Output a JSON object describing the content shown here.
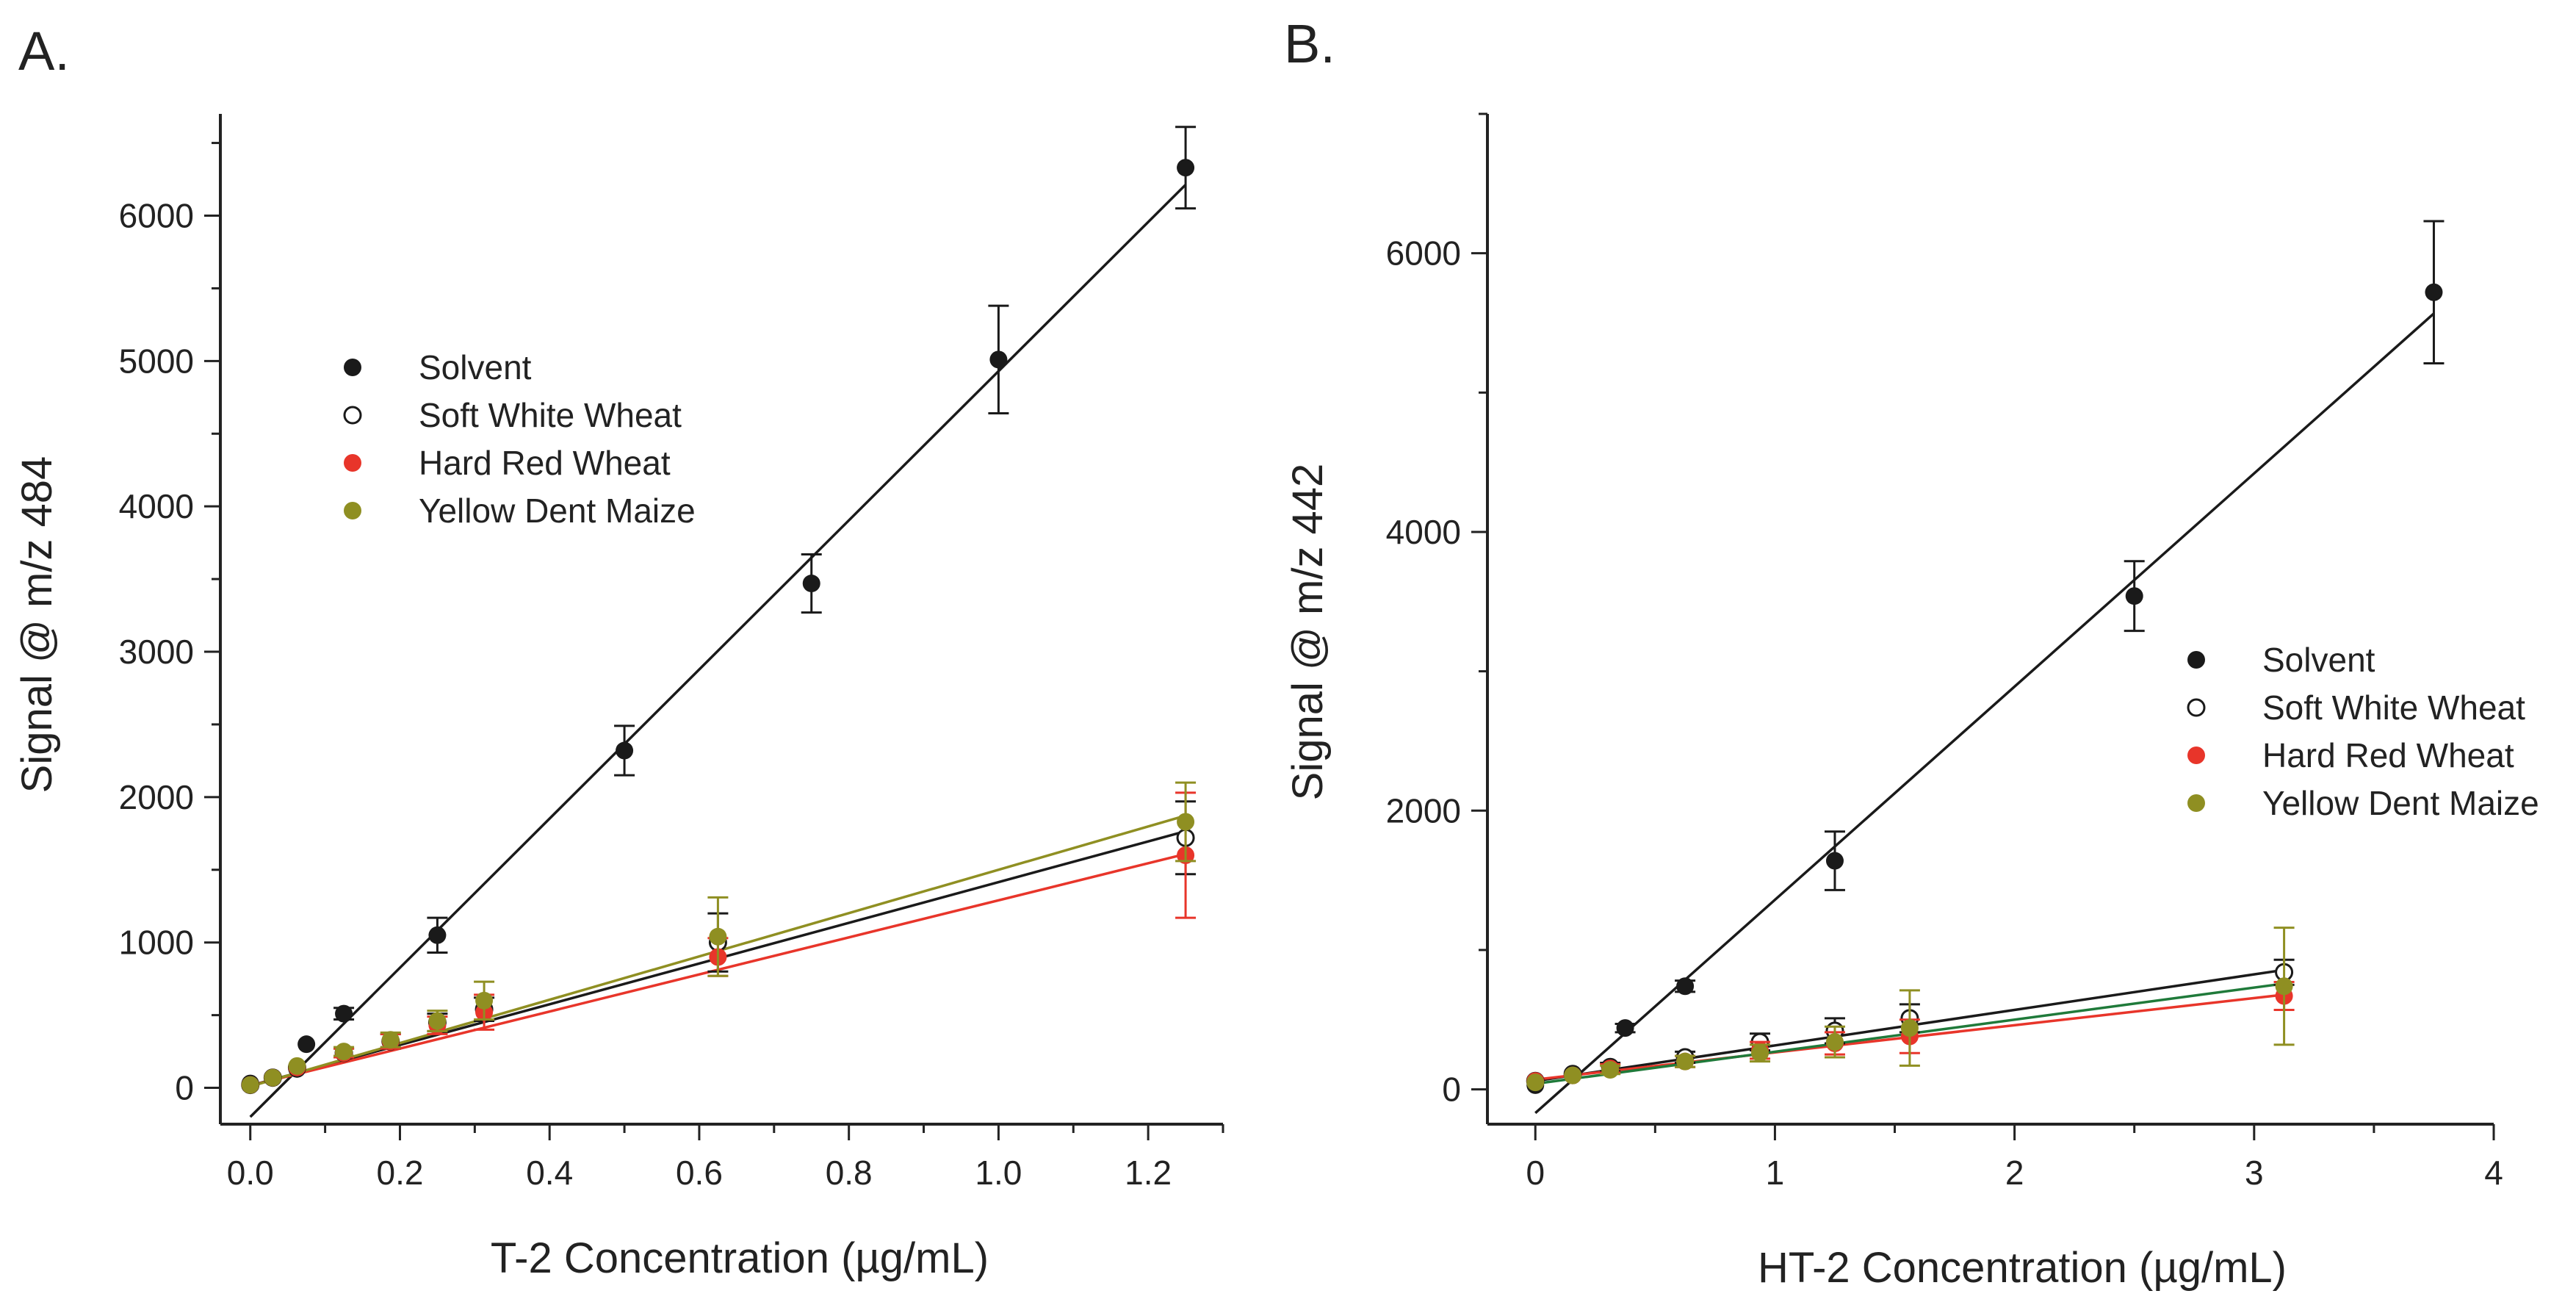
{
  "panels": [
    {
      "label": "A.",
      "xlabel": "T-2 Concentration (µg/mL)",
      "ylabel": "Signal @ m/z 484",
      "xlim": [
        -0.04,
        1.3
      ],
      "ylim": [
        -250,
        6700
      ],
      "xticks": [
        0.0,
        0.2,
        0.4,
        0.6,
        0.8,
        1.0,
        1.2
      ],
      "xtick_labels": [
        "0.0",
        "0.2",
        "0.4",
        "0.6",
        "0.8",
        "1.0",
        "1.2"
      ],
      "yticks": [
        0,
        1000,
        2000,
        3000,
        4000,
        5000,
        6000
      ],
      "ytick_labels": [
        "0",
        "1000",
        "2000",
        "3000",
        "4000",
        "5000",
        "6000"
      ],
      "legend_position": "upper-left",
      "legend": [
        "Solvent",
        "Soft White Wheat",
        "Hard Red Wheat",
        "Yellow Dent Maize"
      ]
    },
    {
      "label": "B.",
      "xlabel": "HT-2 Concentration (µg/mL)",
      "ylabel": "Signal @ m/z 442",
      "xlim": [
        -0.2,
        4.0
      ],
      "ylim": [
        -250,
        7000
      ],
      "xticks": [
        0,
        1,
        2,
        3,
        4
      ],
      "xtick_labels": [
        "0",
        "1",
        "2",
        "3",
        "4"
      ],
      "yticks": [
        0,
        2000,
        4000,
        6000
      ],
      "ytick_labels": [
        "0",
        "2000",
        "4000",
        "6000"
      ],
      "legend_position": "center-right",
      "legend": [
        "Solvent",
        "Soft White Wheat",
        "Hard Red Wheat",
        "Yellow Dent Maize"
      ]
    }
  ],
  "chart_data": [
    {
      "type": "scatter",
      "title": "",
      "xlabel": "T-2 Concentration (µg/mL)",
      "ylabel": "Signal @ m/z 484",
      "xlim": [
        -0.04,
        1.3
      ],
      "ylim": [
        -250,
        6700
      ],
      "grid": false,
      "legend": "upper-left",
      "series": [
        {
          "name": "Solvent",
          "marker": "filled",
          "color": "#1a1a1a",
          "line_color": "#1a1a1a",
          "fit": [
            -200,
            5130
          ],
          "points": [
            {
              "x": 0.0,
              "y": 30,
              "err": 0
            },
            {
              "x": 0.0625,
              "y": 130,
              "err": 0
            },
            {
              "x": 0.075,
              "y": 300,
              "err": 0
            },
            {
              "x": 0.125,
              "y": 510,
              "err": 40
            },
            {
              "x": 0.25,
              "y": 1050,
              "err": 120
            },
            {
              "x": 0.5,
              "y": 2320,
              "err": 170
            },
            {
              "x": 0.75,
              "y": 3470,
              "err": 200
            },
            {
              "x": 1.0,
              "y": 5010,
              "err": 370
            },
            {
              "x": 1.25,
              "y": 6330,
              "err": 280
            }
          ]
        },
        {
          "name": "Soft White Wheat",
          "marker": "open",
          "color": "#1a1a1a",
          "line_color": "#1a1a1a",
          "fit": [
            15,
            1400
          ],
          "points": [
            {
              "x": 0.0,
              "y": 20,
              "err": 0
            },
            {
              "x": 0.03,
              "y": 70,
              "err": 0
            },
            {
              "x": 0.0625,
              "y": 140,
              "err": 0
            },
            {
              "x": 0.125,
              "y": 240,
              "err": 30
            },
            {
              "x": 0.1875,
              "y": 320,
              "err": 50
            },
            {
              "x": 0.25,
              "y": 450,
              "err": 60
            },
            {
              "x": 0.3125,
              "y": 540,
              "err": 80
            },
            {
              "x": 0.625,
              "y": 1000,
              "err": 200
            },
            {
              "x": 1.25,
              "y": 1720,
              "err": 250
            }
          ]
        },
        {
          "name": "Hard Red Wheat",
          "marker": "filled",
          "color": "#e8352a",
          "line_color": "#e8352a",
          "fit": [
            15,
            1275
          ],
          "points": [
            {
              "x": 0.0,
              "y": 20,
              "err": 0
            },
            {
              "x": 0.03,
              "y": 70,
              "err": 0
            },
            {
              "x": 0.0625,
              "y": 140,
              "err": 0
            },
            {
              "x": 0.125,
              "y": 240,
              "err": 30
            },
            {
              "x": 0.1875,
              "y": 320,
              "err": 50
            },
            {
              "x": 0.25,
              "y": 430,
              "err": 60
            },
            {
              "x": 0.3125,
              "y": 520,
              "err": 120
            },
            {
              "x": 0.625,
              "y": 900,
              "err": 130
            },
            {
              "x": 1.25,
              "y": 1600,
              "err": 430
            }
          ]
        },
        {
          "name": "Yellow Dent Maize",
          "marker": "filled",
          "color": "#8f8f22",
          "line_color": "#8f8f22",
          "fit": [
            10,
            1490
          ],
          "points": [
            {
              "x": 0.0,
              "y": 20,
              "err": 0
            },
            {
              "x": 0.03,
              "y": 70,
              "err": 0
            },
            {
              "x": 0.0625,
              "y": 150,
              "err": 0
            },
            {
              "x": 0.125,
              "y": 250,
              "err": 30
            },
            {
              "x": 0.1875,
              "y": 330,
              "err": 50
            },
            {
              "x": 0.25,
              "y": 460,
              "err": 70
            },
            {
              "x": 0.3125,
              "y": 600,
              "err": 130
            },
            {
              "x": 0.625,
              "y": 1040,
              "err": 270
            },
            {
              "x": 1.25,
              "y": 1830,
              "err": 270
            }
          ]
        }
      ]
    },
    {
      "type": "scatter",
      "title": "",
      "xlabel": "HT-2 Concentration (µg/mL)",
      "ylabel": "Signal @ m/z 442",
      "xlim": [
        -0.2,
        4.0
      ],
      "ylim": [
        -250,
        7000
      ],
      "grid": false,
      "legend": "center-right",
      "series": [
        {
          "name": "Solvent",
          "marker": "filled",
          "color": "#1a1a1a",
          "line_color": "#1a1a1a",
          "fit": [
            -170,
            1530
          ],
          "points": [
            {
              "x": 0.0,
              "y": 30,
              "err": 0
            },
            {
              "x": 0.156,
              "y": 100,
              "err": 0
            },
            {
              "x": 0.375,
              "y": 440,
              "err": 30
            },
            {
              "x": 0.625,
              "y": 740,
              "err": 40
            },
            {
              "x": 1.25,
              "y": 1640,
              "err": 210
            },
            {
              "x": 2.5,
              "y": 3540,
              "err": 250
            },
            {
              "x": 3.75,
              "y": 5720,
              "err": 510
            }
          ]
        },
        {
          "name": "Soft White Wheat",
          "marker": "open",
          "color": "#1a1a1a",
          "line_color": "#1a1a1a",
          "fit": [
            60,
            255
          ],
          "points": [
            {
              "x": 0.0,
              "y": 60,
              "err": 0
            },
            {
              "x": 0.156,
              "y": 110,
              "err": 0
            },
            {
              "x": 0.3125,
              "y": 160,
              "err": 30
            },
            {
              "x": 0.625,
              "y": 230,
              "err": 40
            },
            {
              "x": 0.9375,
              "y": 340,
              "err": 60
            },
            {
              "x": 1.25,
              "y": 420,
              "err": 90
            },
            {
              "x": 1.5625,
              "y": 510,
              "err": 100
            },
            {
              "x": 3.125,
              "y": 840,
              "err": 90
            }
          ]
        },
        {
          "name": "Hard Red Wheat",
          "marker": "filled",
          "color": "#e8352a",
          "line_color": "#e8352a",
          "fit": [
            70,
            195
          ],
          "points": [
            {
              "x": 0.0,
              "y": 60,
              "err": 0
            },
            {
              "x": 0.156,
              "y": 100,
              "err": 0
            },
            {
              "x": 0.3125,
              "y": 150,
              "err": 30
            },
            {
              "x": 0.625,
              "y": 200,
              "err": 40
            },
            {
              "x": 0.9375,
              "y": 280,
              "err": 60
            },
            {
              "x": 1.25,
              "y": 330,
              "err": 80
            },
            {
              "x": 1.5625,
              "y": 380,
              "err": 120
            },
            {
              "x": 3.125,
              "y": 670,
              "err": 100
            }
          ]
        },
        {
          "name": "Yellow Dent Maize",
          "marker": "filled",
          "color": "#8f8f22",
          "line_color": "#1f7a3a",
          "fit": [
            40,
            230
          ],
          "points": [
            {
              "x": 0.0,
              "y": 50,
              "err": 0
            },
            {
              "x": 0.156,
              "y": 100,
              "err": 0
            },
            {
              "x": 0.3125,
              "y": 140,
              "err": 30
            },
            {
              "x": 0.625,
              "y": 200,
              "err": 40
            },
            {
              "x": 0.9375,
              "y": 260,
              "err": 60
            },
            {
              "x": 1.25,
              "y": 340,
              "err": 110
            },
            {
              "x": 1.5625,
              "y": 440,
              "err": 270
            },
            {
              "x": 3.125,
              "y": 740,
              "err": 420
            }
          ]
        }
      ]
    }
  ]
}
